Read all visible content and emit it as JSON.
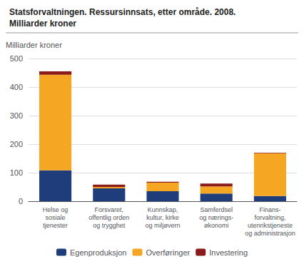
{
  "chart_data": {
    "type": "bar",
    "title": "Statsforvaltningen. Ressursinnsats, etter område. 2008.",
    "subtitle": "Milliarder kroner",
    "ylabel": "Milliarder kroner",
    "categories": [
      "Helse og\nsosiale\ntjenester",
      "Forsvaret,\noffentlig orden\nog trygghet",
      "Kunnskap,\nkultur, kirke\nog miljøvern",
      "Samferdsel\nog nærings-\nøkonomi",
      "Finans-\nforvaltning,\nutenrikstjeneste\nog administrasjon"
    ],
    "series": [
      {
        "name": "Egenproduksjon",
        "color": "#1f3d7a",
        "values": [
          108,
          45,
          35,
          27,
          18
        ]
      },
      {
        "name": "Overføringer",
        "color": "#f5a623",
        "values": [
          335,
          5,
          30,
          25,
          150
        ]
      },
      {
        "name": "Investering",
        "color": "#8b1a1a",
        "values": [
          12,
          8,
          3,
          10,
          2
        ]
      }
    ],
    "stacked": true,
    "ylim": [
      0,
      500
    ],
    "yticks": [
      0,
      100,
      200,
      300,
      400,
      500
    ],
    "grid": true,
    "legend": "bottom"
  }
}
